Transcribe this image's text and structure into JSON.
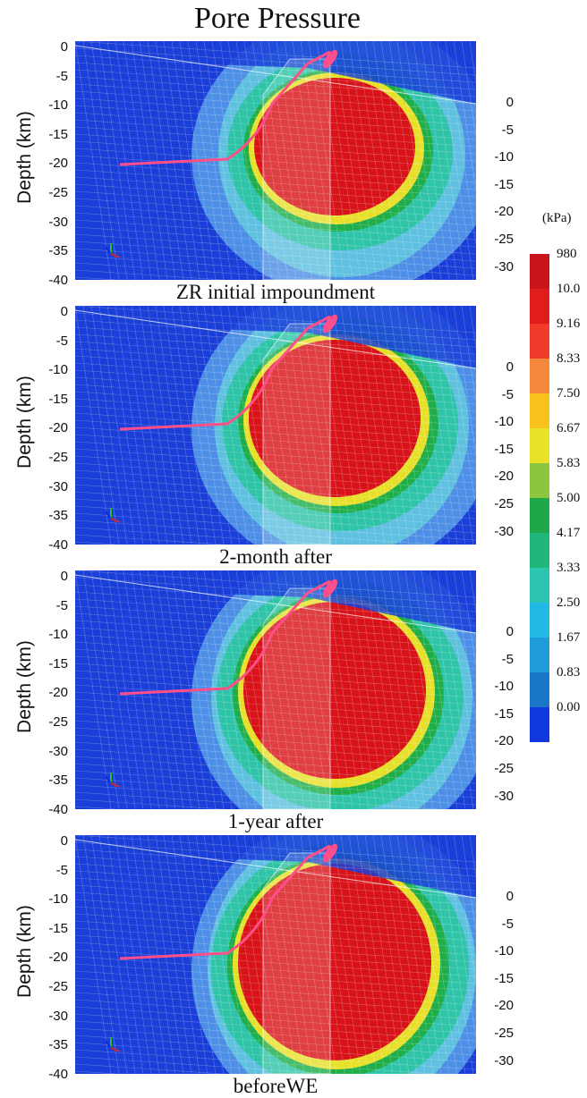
{
  "title": "Pore Pressure",
  "y_axis_title": "Depth (km)",
  "left_ticks": [
    "0",
    "-5",
    "-10",
    "-15",
    "-20",
    "-25",
    "-30",
    "-35",
    "-40"
  ],
  "right_ticks": [
    "0",
    "-5",
    "-10",
    "-15",
    "-20",
    "-25",
    "-30"
  ],
  "panels": [
    {
      "caption": "ZR initial impoundment",
      "stage": 1
    },
    {
      "caption": "2-month after",
      "stage": 2
    },
    {
      "caption": "1-year after",
      "stage": 3
    },
    {
      "caption": "beforeWE",
      "stage": 4
    }
  ],
  "legend": {
    "unit": "(kPa)",
    "entries": [
      {
        "label": "980",
        "color": "#c8141a"
      },
      {
        "label": "10.0",
        "color": "#e01c1c"
      },
      {
        "label": "9.16",
        "color": "#f03a2a"
      },
      {
        "label": "8.33",
        "color": "#f5873a"
      },
      {
        "label": "7.50",
        "color": "#f8c21a"
      },
      {
        "label": "6.67",
        "color": "#e9e228"
      },
      {
        "label": "5.83",
        "color": "#8cc63c"
      },
      {
        "label": "5.00",
        "color": "#1fa84a"
      },
      {
        "label": "4.17",
        "color": "#21b77a"
      },
      {
        "label": "3.33",
        "color": "#2cc5b0"
      },
      {
        "label": "2.50",
        "color": "#22b9e6"
      },
      {
        "label": "1.67",
        "color": "#1f9bd8"
      },
      {
        "label": "0.83",
        "color": "#1a76c8"
      },
      {
        "label": "0.00",
        "color": "#1238e0"
      }
    ]
  },
  "colors": {
    "background_blue": "#1a3fd8",
    "far_field": "#4d8fe6",
    "low": "#5fc0e0",
    "mid": "#2fc4a8",
    "green": "#1fae4a",
    "yellow": "#e6e02a",
    "high": "#d8141a",
    "fault": "#ff4f8a"
  }
}
